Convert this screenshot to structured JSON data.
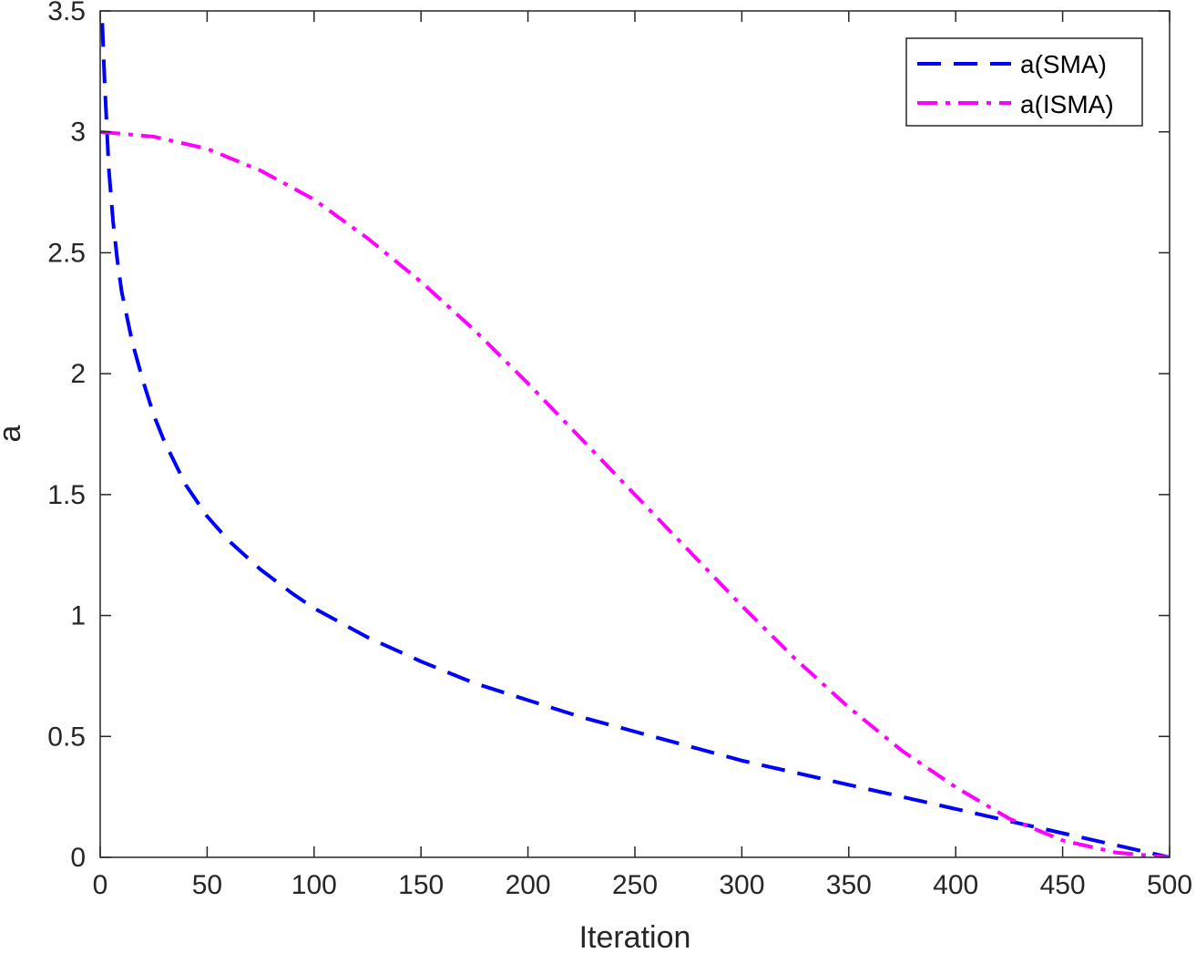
{
  "chart_data": {
    "type": "line",
    "title": "",
    "xlabel": "Iteration",
    "ylabel": "a",
    "xlim": [
      0,
      500
    ],
    "ylim": [
      0,
      3.5
    ],
    "xticks": [
      0,
      50,
      100,
      150,
      200,
      250,
      300,
      350,
      400,
      450,
      500
    ],
    "yticks": [
      0,
      0.5,
      1,
      1.5,
      2,
      2.5,
      3,
      3.5
    ],
    "grid": false,
    "legend_position": "top-right",
    "series": [
      {
        "name": "a(SMA)",
        "color": "#0000ff",
        "style": "dashed",
        "x": [
          1,
          2,
          4,
          6,
          8,
          10,
          15,
          20,
          25,
          30,
          40,
          50,
          60,
          75,
          90,
          100,
          125,
          150,
          175,
          200,
          225,
          250,
          275,
          300,
          325,
          350,
          375,
          400,
          425,
          450,
          475,
          490,
          500
        ],
        "y": [
          3.45,
          3.22,
          2.85,
          2.63,
          2.47,
          2.34,
          2.13,
          1.97,
          1.83,
          1.72,
          1.54,
          1.41,
          1.31,
          1.19,
          1.09,
          1.03,
          0.91,
          0.81,
          0.72,
          0.65,
          0.58,
          0.52,
          0.46,
          0.4,
          0.35,
          0.3,
          0.25,
          0.2,
          0.15,
          0.1,
          0.05,
          0.02,
          0.0
        ]
      },
      {
        "name": "a(ISMA)",
        "color": "#ff00ff",
        "style": "dashdot",
        "x": [
          0,
          25,
          50,
          75,
          100,
          125,
          150,
          175,
          200,
          225,
          250,
          275,
          300,
          325,
          350,
          375,
          400,
          425,
          450,
          475,
          500
        ],
        "y": [
          3.0,
          2.98,
          2.93,
          2.84,
          2.72,
          2.56,
          2.38,
          2.18,
          1.96,
          1.73,
          1.5,
          1.27,
          1.04,
          0.82,
          0.62,
          0.44,
          0.29,
          0.16,
          0.07,
          0.02,
          0.0
        ]
      }
    ]
  }
}
